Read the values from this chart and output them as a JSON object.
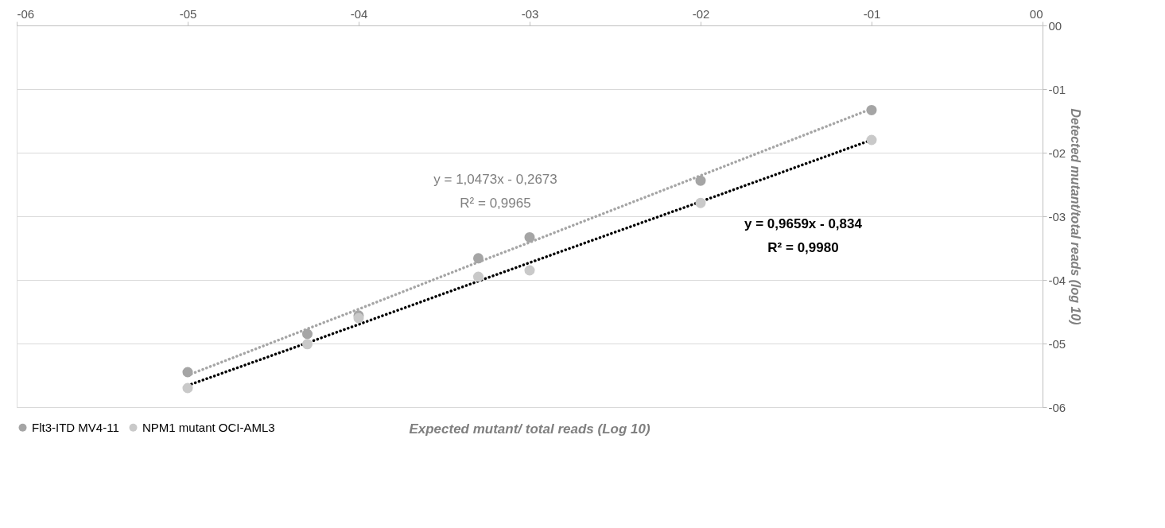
{
  "chart_data": {
    "type": "scatter",
    "xlabel": "Expected mutant/ total reads (Log 10)",
    "ylabel": "Detected  mutant/total reads (log 10)",
    "x": [
      -5,
      -4.3,
      -4,
      -3.3,
      -3,
      -2,
      -1
    ],
    "series": [
      {
        "name": "Flt3-ITD MV4-11",
        "color": "#a5a5a5",
        "values": [
          -5.45,
          -4.85,
          -4.56,
          -3.66,
          -3.33,
          -2.44,
          -1.33
        ]
      },
      {
        "name": "NPM1 mutant OCI-AML3",
        "color": "#c9c9c9",
        "values": [
          -5.7,
          -5.01,
          -4.6,
          -3.95,
          -3.85,
          -2.79,
          -1.8
        ]
      },
      {
        "type": "line",
        "marker": "none",
        "color": "#a6a6a6",
        "values": [
          -5.5,
          -4.77,
          -4.46,
          -3.72,
          -3.41,
          -2.36,
          -1.31
        ]
      },
      {
        "type": "line",
        "marker": "none",
        "color": "#000000",
        "values": [
          -5.66,
          -4.99,
          -4.7,
          -4.02,
          -3.73,
          -2.77,
          -1.8
        ]
      }
    ],
    "annotations": [
      "y = 1,0473x - 0,2673",
      "R² = 0,9965",
      "y = 0,9659x - 0,834",
      "R² = 0,9980"
    ],
    "xlim": [
      -6,
      0
    ],
    "ylim": [
      -6,
      0
    ],
    "xticks": [
      {
        "value": -6,
        "label": "-06"
      },
      {
        "value": -5,
        "label": "-05"
      },
      {
        "value": -4,
        "label": "-04"
      },
      {
        "value": -3,
        "label": "-03"
      },
      {
        "value": -2,
        "label": "-02"
      },
      {
        "value": -1,
        "label": "-01"
      },
      {
        "value": 0,
        "label": "00"
      }
    ],
    "yticks": [
      {
        "value": 0,
        "label": "00"
      },
      {
        "value": -1,
        "label": "-01"
      },
      {
        "value": -2,
        "label": "-02"
      },
      {
        "value": -3,
        "label": "-03"
      },
      {
        "value": -4,
        "label": "-04"
      },
      {
        "value": -5,
        "label": "-05"
      },
      {
        "value": -6,
        "label": "-06"
      }
    ],
    "grid": "y",
    "legend": "bottom",
    "marker": "circle",
    "line_style": "dotted"
  }
}
